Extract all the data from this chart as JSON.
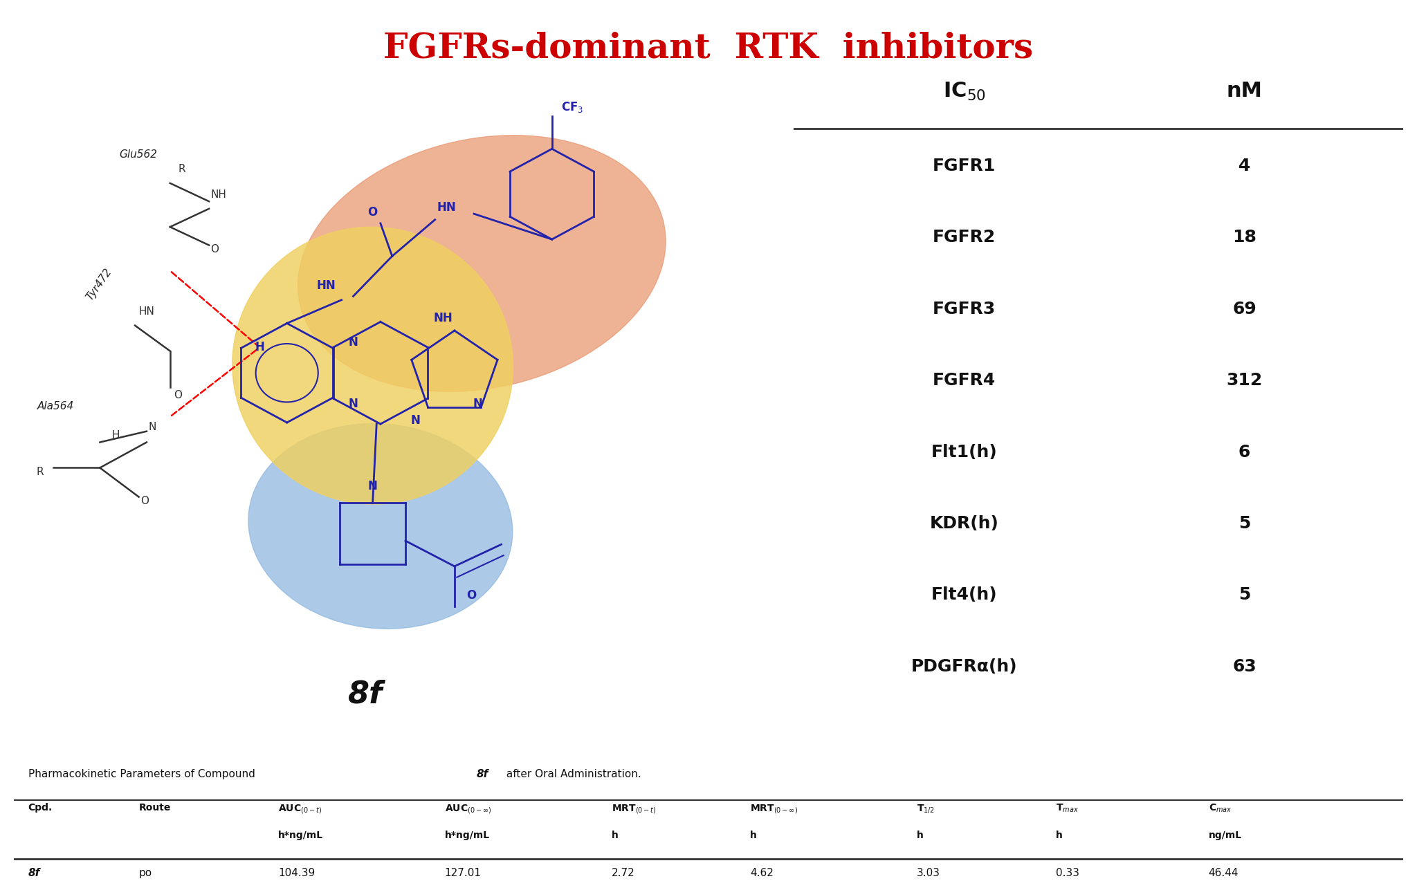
{
  "title": "FGFRs-dominant  RTK  inhibitors",
  "title_color": "#CC0000",
  "title_fontsize": 36,
  "ic50_rows": [
    [
      "FGFR1",
      "4"
    ],
    [
      "FGFR2",
      "18"
    ],
    [
      "FGFR3",
      "69"
    ],
    [
      "FGFR4",
      "312"
    ],
    [
      "Flt1(h)",
      "6"
    ],
    [
      "KDR(h)",
      "5"
    ],
    [
      "Flt4(h)",
      "5"
    ],
    [
      "PDGFRα(h)",
      "63"
    ]
  ],
  "pk_row": [
    "8f",
    "po",
    "104.39",
    "127.01",
    "2.72",
    "4.62",
    "3.03",
    "0.33",
    "46.44"
  ],
  "compound_label": "8f",
  "orange_blob_color": "#E8956D",
  "yellow_blob_color": "#F0D060",
  "blue_blob_color": "#90B8E0",
  "molecule_color": "#2222AA",
  "bg_color": "#FFFFFF"
}
